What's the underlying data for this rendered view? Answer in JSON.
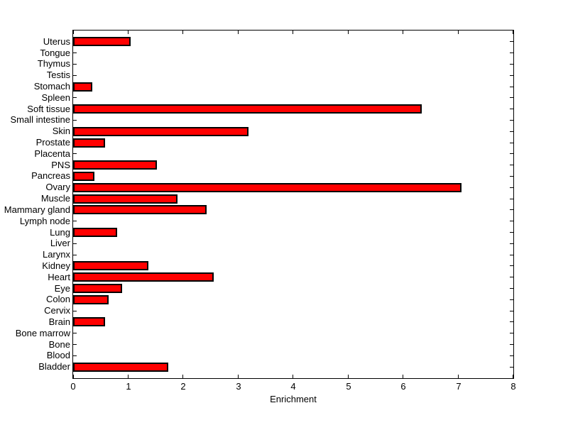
{
  "figure": {
    "background": "#ffffff"
  },
  "chart_data": {
    "type": "bar",
    "orientation": "horizontal",
    "title": "",
    "xlabel": "Enrichment",
    "ylabel": "",
    "xlim": [
      0,
      8
    ],
    "xticks": [
      0,
      1,
      2,
      3,
      4,
      5,
      6,
      7,
      8
    ],
    "grid": false,
    "legend": "none",
    "bar_color": "#FF0000",
    "bar_edge_color": "#000000",
    "axis_color": "#000000",
    "categories_top_to_bottom": [
      "Uterus",
      "Tongue",
      "Thymus",
      "Testis",
      "Stomach",
      "Spleen",
      "Soft tissue",
      "Small intestine",
      "Skin",
      "Prostate",
      "Placenta",
      "PNS",
      "Pancreas",
      "Ovary",
      "Muscle",
      "Mammary gland",
      "Lymph node",
      "Lung",
      "Liver",
      "Larynx",
      "Kidney",
      "Heart",
      "Eye",
      "Colon",
      "Cervix",
      "Brain",
      "Bone marrow",
      "Bone",
      "Blood",
      "Bladder"
    ],
    "values": [
      1.05,
      0,
      0,
      0,
      0.35,
      0,
      6.33,
      0,
      3.19,
      0.58,
      0,
      1.52,
      0.39,
      7.06,
      1.9,
      2.43,
      0,
      0.8,
      0,
      0,
      1.37,
      2.55,
      0.89,
      0.64,
      0,
      0.58,
      0,
      0,
      0,
      1.73
    ]
  }
}
